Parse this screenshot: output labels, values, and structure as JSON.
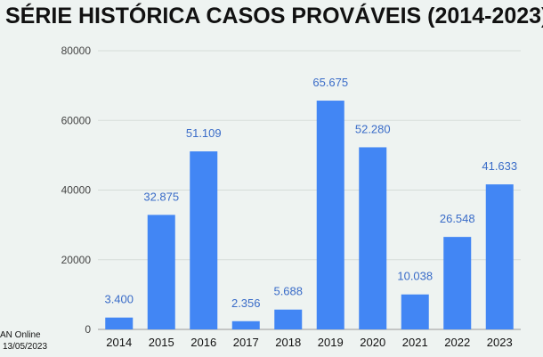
{
  "chart_data": {
    "type": "bar",
    "title": "SÉRIE HISTÓRICA CASOS PROVÁVEIS (2014-2023)",
    "categories": [
      "2014",
      "2015",
      "2016",
      "2017",
      "2018",
      "2019",
      "2020",
      "2021",
      "2022",
      "2023"
    ],
    "values": [
      3400,
      32875,
      51109,
      2356,
      5688,
      65675,
      52280,
      10038,
      26548,
      41633
    ],
    "data_labels": [
      "3.400",
      "32.875",
      "51.109",
      "2.356",
      "5.688",
      "65.675",
      "52.280",
      "10.038",
      "26.548",
      "41.633"
    ],
    "yticks": [
      0,
      20000,
      40000,
      60000,
      80000
    ],
    "ytick_labels": [
      "0",
      "20000",
      "40000",
      "60000",
      "80000"
    ],
    "ylim": [
      0,
      80000
    ],
    "grid": true,
    "bar_color": "#4286f4",
    "label_color": "#3a6cc8"
  },
  "source": {
    "line1": "AN Online",
    "line2": "13/05/2023"
  }
}
